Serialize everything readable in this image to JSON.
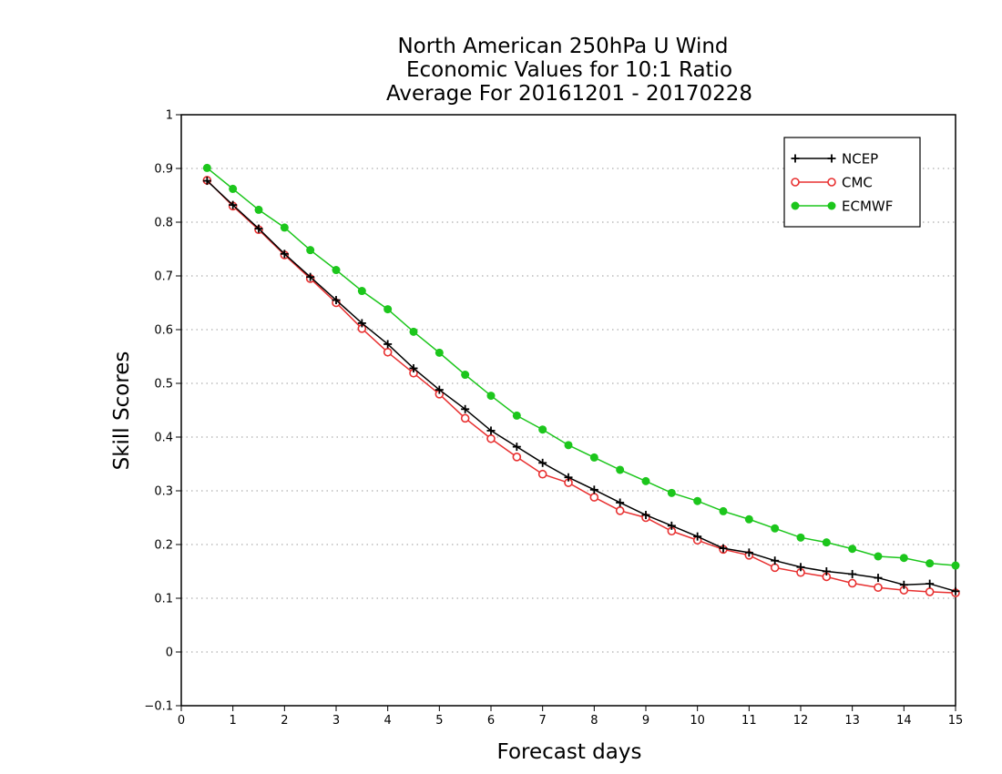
{
  "chart_data": {
    "type": "line",
    "title": [
      "North American 250hPa U Wind",
      "Economic Values for 10:1 Ratio",
      "Average For 20161201 - 20170228"
    ],
    "xlabel": "Forecast days",
    "ylabel": "Skill Scores",
    "xlim": [
      0,
      15
    ],
    "ylim": [
      -0.1,
      1
    ],
    "xticks": [
      "0",
      "1",
      "2",
      "3",
      "4",
      "5",
      "6",
      "7",
      "8",
      "9",
      "10",
      "11",
      "12",
      "13",
      "14",
      "15"
    ],
    "yticks": [
      "−0.1",
      "0",
      "0.1",
      "0.2",
      "0.3",
      "0.4",
      "0.5",
      "0.6",
      "0.7",
      "0.8",
      "0.9",
      "1"
    ],
    "grid": "horizontal-dotted",
    "legend_position": "top-right",
    "x": [
      0.5,
      1,
      1.5,
      2,
      2.5,
      3,
      3.5,
      4,
      4.5,
      5,
      5.5,
      6,
      6.5,
      7,
      7.5,
      8,
      8.5,
      9,
      9.5,
      10,
      10.5,
      11,
      11.5,
      12,
      12.5,
      13,
      13.5,
      14,
      14.5,
      15
    ],
    "series": [
      {
        "name": "NCEP",
        "color": "#000000",
        "marker": "plus",
        "values": [
          0.877,
          0.832,
          0.788,
          0.741,
          0.698,
          0.655,
          0.612,
          0.573,
          0.528,
          0.488,
          0.452,
          0.412,
          0.382,
          0.352,
          0.325,
          0.302,
          0.278,
          0.255,
          0.235,
          0.215,
          0.193,
          0.185,
          0.17,
          0.158,
          0.15,
          0.145,
          0.138,
          0.125,
          0.127,
          0.113
        ]
      },
      {
        "name": "CMC",
        "color": "#e83030",
        "marker": "open-circle",
        "values": [
          0.878,
          0.83,
          0.786,
          0.739,
          0.695,
          0.65,
          0.602,
          0.558,
          0.519,
          0.48,
          0.435,
          0.397,
          0.363,
          0.331,
          0.315,
          0.288,
          0.263,
          0.25,
          0.225,
          0.208,
          0.191,
          0.18,
          0.157,
          0.148,
          0.14,
          0.128,
          0.12,
          0.115,
          0.112,
          0.11
        ]
      },
      {
        "name": "ECMWF",
        "color": "#1cc61c",
        "marker": "filled-circle",
        "values": [
          0.901,
          0.862,
          0.823,
          0.79,
          0.748,
          0.711,
          0.672,
          0.638,
          0.596,
          0.557,
          0.516,
          0.477,
          0.44,
          0.414,
          0.385,
          0.362,
          0.339,
          0.318,
          0.296,
          0.281,
          0.262,
          0.247,
          0.23,
          0.213,
          0.204,
          0.192,
          0.178,
          0.175,
          0.165,
          0.161
        ]
      }
    ]
  }
}
